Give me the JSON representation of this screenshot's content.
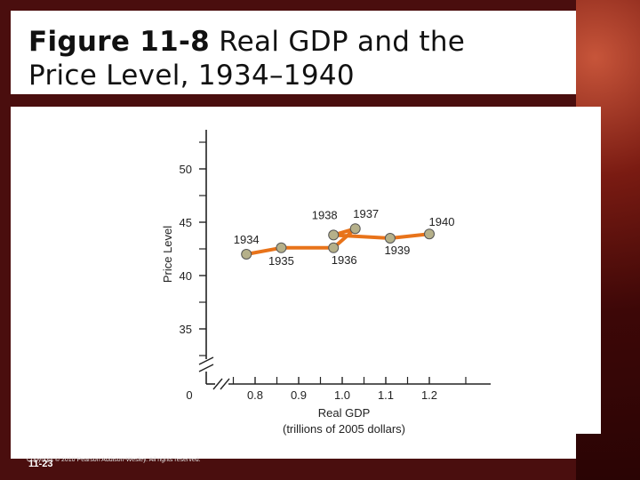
{
  "title": {
    "figure_label": "Figure 11-8",
    "line1": "Real GDP and the",
    "line2": "Price Level, 1934–1940"
  },
  "chart_data": {
    "type": "line",
    "xlabel": [
      "Real GDP",
      "(trillions of 2005 dollars)"
    ],
    "ylabel": "Price Level",
    "x_ticks": [
      "0.8",
      "0.9",
      "1.0",
      "1.1",
      "1.2"
    ],
    "y_ticks": [
      "35",
      "40",
      "45",
      "50"
    ],
    "origin_label": "0",
    "xlim": [
      0.8,
      1.2
    ],
    "ylim": [
      35,
      50
    ],
    "points": [
      {
        "label": "1934",
        "x": 0.78,
        "y": 42.0
      },
      {
        "label": "1935",
        "x": 0.86,
        "y": 42.6
      },
      {
        "label": "1936",
        "x": 0.98,
        "y": 42.6
      },
      {
        "label": "1937",
        "x": 1.03,
        "y": 44.4
      },
      {
        "label": "1938",
        "x": 0.98,
        "y": 43.8
      },
      {
        "label": "1939",
        "x": 1.11,
        "y": 43.5
      },
      {
        "label": "1940",
        "x": 1.2,
        "y": 43.9
      }
    ],
    "line_color": "#e8731a",
    "marker_color": "#b5b08a"
  },
  "footer": {
    "copyright": "Copyright © 2010 Pearson Addison-Wesley. All rights reserved.",
    "slide_number": "11-23"
  }
}
